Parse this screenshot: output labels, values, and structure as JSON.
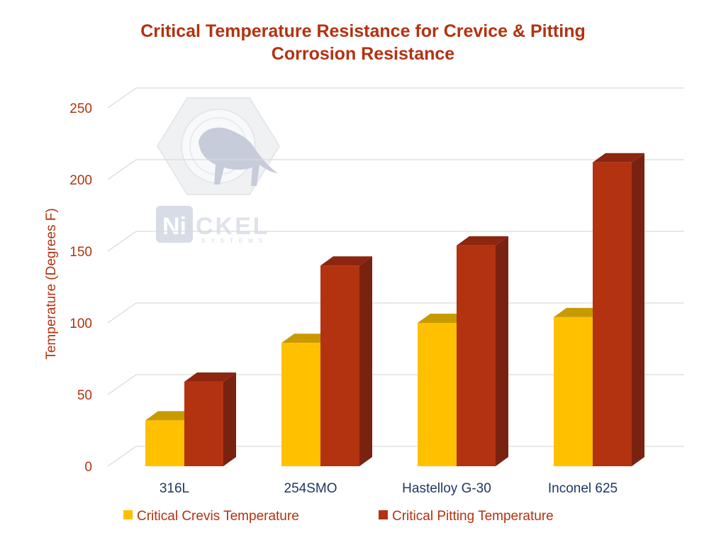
{
  "chart_data": {
    "type": "bar",
    "title": "Critical Temperature Resistance for Crevice & Pitting Corrosion Resistance",
    "title_lines": [
      "Critical Temperature Resistance for Crevice & Pitting",
      "Corrosion Resistance"
    ],
    "ylabel": "Temperature (Degrees F)",
    "xlabel": "",
    "categories": [
      "316L",
      "254SMO",
      "Hastelloy G-30",
      "Inconel 625"
    ],
    "series": [
      {
        "name": "Critical Crevis Temperature",
        "values": [
          32,
          86,
          100,
          104
        ],
        "color": "#FFC000",
        "top_color": "#C99A00"
      },
      {
        "name": "Critical Pitting Temperature",
        "values": [
          59,
          140,
          154,
          212
        ],
        "color": "#B33210",
        "side_color": "#7A2210"
      }
    ],
    "ylim": [
      0,
      250
    ],
    "yticks": [
      "0",
      "50",
      "100",
      "150",
      "200",
      "250"
    ],
    "grid": true,
    "legend_position": "bottom",
    "style": "3d-clustered-column"
  },
  "watermark": {
    "logo_text_a": "Ni",
    "logo_text_b": "CKEL",
    "logo_subtext": "SYSTEMS"
  },
  "colors": {
    "title": "#B33210",
    "axis_text": "#B33210",
    "category_text": "#1F3864",
    "legend_text": "#B33210",
    "gridline": "#D9D9D9"
  }
}
